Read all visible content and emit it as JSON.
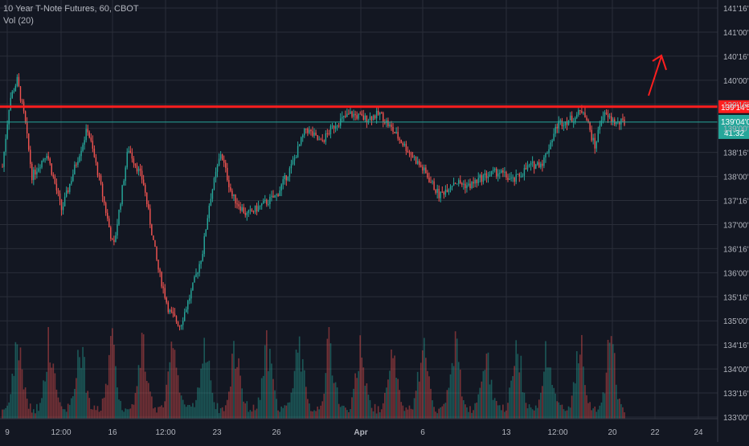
{
  "legend": {
    "title": "10 Year T-Note Futures, 60, CBOT",
    "volume_label": "Vol (20)"
  },
  "colors": {
    "background": "#131722",
    "grid": "#2a2e39",
    "axis_text": "#b2b5be",
    "up": "#26a69a",
    "down": "#ef5350",
    "resistance": "#ff1e1e",
    "price_line": "#26a69a",
    "arrow": "#ff1e1e"
  },
  "chart_data": {
    "type": "candlestick",
    "y_axis": {
      "unit": "points and 32nds",
      "ylim": [
        133.0,
        141.5
      ],
      "tick_values": [
        133.0,
        133.5,
        134.0,
        134.5,
        135.0,
        135.5,
        136.0,
        136.5,
        137.0,
        137.5,
        138.0,
        138.5,
        139.0,
        139.5,
        140.0,
        140.5,
        141.0,
        141.5
      ],
      "tick_labels": [
        "133'00'0",
        "133'16'0",
        "134'00'0",
        "134'16'0",
        "135'00'0",
        "135'16'0",
        "136'00'0",
        "136'16'0",
        "137'00'0",
        "137'16'0",
        "138'00'0",
        "138'16'0",
        "139'00'0",
        "139'16'0",
        "140'00'0",
        "140'16'0",
        "141'00'0",
        "141'16'0"
      ]
    },
    "x_axis": {
      "tick_labels": [
        "9",
        "12:00",
        "16",
        "12:00",
        "23",
        "26",
        "Apr",
        "6",
        "13",
        "12:00",
        "20",
        "22",
        "24"
      ],
      "bold_labels": [
        "Apr"
      ]
    },
    "resistance_line": {
      "value": 139.45,
      "label": "139'14'5"
    },
    "last_price": {
      "value": 139.13,
      "label": "139'04'0",
      "countdown": "41:32"
    },
    "price_path": [
      {
        "t": 0,
        "v": 138.2
      },
      {
        "t": 1,
        "v": 139.6
      },
      {
        "t": 2,
        "v": 140.0
      },
      {
        "t": 3,
        "v": 139.2
      },
      {
        "t": 4,
        "v": 138.0
      },
      {
        "t": 6,
        "v": 138.5
      },
      {
        "t": 8,
        "v": 137.3
      },
      {
        "t": 10,
        "v": 138.3
      },
      {
        "t": 11.5,
        "v": 139.0
      },
      {
        "t": 13,
        "v": 138.0
      },
      {
        "t": 15,
        "v": 136.5
      },
      {
        "t": 17,
        "v": 138.6
      },
      {
        "t": 19,
        "v": 137.9
      },
      {
        "t": 21,
        "v": 136.1
      },
      {
        "t": 22.5,
        "v": 135.2
      },
      {
        "t": 24,
        "v": 134.9
      },
      {
        "t": 25.5,
        "v": 135.6
      },
      {
        "t": 27,
        "v": 136.4
      },
      {
        "t": 28,
        "v": 137.5
      },
      {
        "t": 29.5,
        "v": 138.5
      },
      {
        "t": 31,
        "v": 137.6
      },
      {
        "t": 33,
        "v": 137.2
      },
      {
        "t": 35,
        "v": 137.4
      },
      {
        "t": 37,
        "v": 137.6
      },
      {
        "t": 39,
        "v": 138.2
      },
      {
        "t": 41,
        "v": 139.0
      },
      {
        "t": 43,
        "v": 138.7
      },
      {
        "t": 45,
        "v": 139.1
      },
      {
        "t": 47,
        "v": 139.3
      },
      {
        "t": 49,
        "v": 139.2
      },
      {
        "t": 51,
        "v": 139.3
      },
      {
        "t": 53,
        "v": 138.9
      },
      {
        "t": 55,
        "v": 138.5
      },
      {
        "t": 57,
        "v": 138.1
      },
      {
        "t": 59,
        "v": 137.6
      },
      {
        "t": 61,
        "v": 137.9
      },
      {
        "t": 63,
        "v": 137.8
      },
      {
        "t": 65,
        "v": 138.0
      },
      {
        "t": 67,
        "v": 138.1
      },
      {
        "t": 69,
        "v": 137.9
      },
      {
        "t": 71,
        "v": 138.2
      },
      {
        "t": 73,
        "v": 138.3
      },
      {
        "t": 75,
        "v": 139.1
      },
      {
        "t": 77,
        "v": 139.2
      },
      {
        "t": 78.5,
        "v": 139.4
      },
      {
        "t": 80,
        "v": 138.6
      },
      {
        "t": 81,
        "v": 139.3
      },
      {
        "t": 83,
        "v": 139.1
      },
      {
        "t": 84,
        "v": 139.13
      }
    ],
    "volume_profile": "periodic daily spikes, mixed red and green bars",
    "annotation": "red arrow pointing up-right"
  }
}
